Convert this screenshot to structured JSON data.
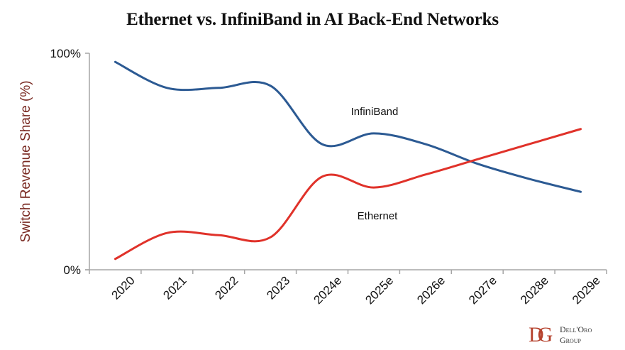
{
  "title": "Ethernet vs. InfiniBand in AI Back-End Networks",
  "logo": {
    "mark": "DG",
    "line1": "Dell'Oro",
    "line2": "Group",
    "color": "#b5412c"
  },
  "chart_data": {
    "type": "line",
    "title": "Ethernet vs. InfiniBand in AI Back-End Networks",
    "xlabel": "",
    "ylabel": "Switch Revenue Share (%)",
    "ylabel_color": "#7a2a22",
    "ylim": [
      0,
      100
    ],
    "y_ticks": [
      "0%",
      "100%"
    ],
    "y_tick_values": [
      0,
      100
    ],
    "categories": [
      "2020",
      "2021",
      "2022",
      "2023",
      "2024e",
      "2025e",
      "2026e",
      "2027e",
      "2028e",
      "2029e"
    ],
    "grid": false,
    "legend": "inline-labels",
    "series": [
      {
        "name": "InfiniBand",
        "color": "#2c5a93",
        "values": [
          96,
          84,
          84,
          85,
          58,
          63,
          58,
          49,
          42,
          36
        ]
      },
      {
        "name": "Ethernet",
        "color": "#e0322a",
        "values": [
          5,
          17,
          16,
          15,
          43,
          38,
          44,
          51,
          58,
          65
        ]
      }
    ]
  }
}
